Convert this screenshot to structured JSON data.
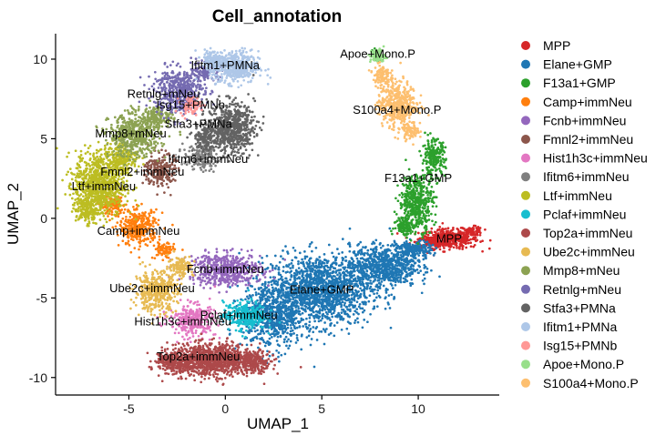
{
  "chart_data": {
    "type": "scatter",
    "title": "Cell_annotation",
    "xlabel": "UMAP_1",
    "ylabel": "UMAP_2",
    "xlim": [
      -8.8,
      14.2
    ],
    "ylim": [
      -11.1,
      11.6
    ],
    "xticks": [
      -5,
      0,
      5,
      10
    ],
    "yticks": [
      -10,
      -5,
      0,
      5,
      10
    ],
    "grid": false,
    "legend_position": "right",
    "series": [
      {
        "name": "MPP",
        "color": "#D62728",
        "label": {
          "text": "MPP",
          "x": 11.6,
          "y": -1.3
        },
        "blobs": [
          [
            11.6,
            -1.3,
            1.4,
            0.55,
            420
          ],
          [
            12.8,
            -0.8,
            0.5,
            0.25,
            80
          ],
          [
            10.7,
            -1.5,
            0.7,
            0.3,
            120
          ]
        ]
      },
      {
        "name": "Elane+GMP",
        "color": "#1F77B4",
        "label": {
          "text": "Elane+GMP",
          "x": 5.0,
          "y": -4.5
        },
        "blobs": [
          [
            5.0,
            -4.5,
            2.3,
            2.0,
            1400
          ],
          [
            8.2,
            -3.0,
            1.6,
            1.2,
            700
          ],
          [
            2.5,
            -6.0,
            1.5,
            2.0,
            700
          ],
          [
            9.8,
            -2.0,
            0.8,
            0.5,
            200
          ]
        ]
      },
      {
        "name": "F13a1+GMP",
        "color": "#2CA02C",
        "label": {
          "text": "F13a1+GMP",
          "x": 10.0,
          "y": 2.5
        },
        "blobs": [
          [
            9.9,
            1.0,
            0.8,
            1.6,
            450
          ],
          [
            10.8,
            3.8,
            0.55,
            1.0,
            220
          ],
          [
            9.3,
            -0.5,
            0.5,
            0.5,
            100
          ],
          [
            7.9,
            10.2,
            0.25,
            0.3,
            30
          ]
        ]
      },
      {
        "name": "Camp+immNeu",
        "color": "#FF7F0E",
        "label": {
          "text": "Camp+immNeu",
          "x": -4.5,
          "y": -0.8
        },
        "blobs": [
          [
            -4.5,
            -0.6,
            0.9,
            1.0,
            320
          ],
          [
            -5.8,
            0.8,
            0.6,
            0.6,
            120
          ],
          [
            -3.2,
            -2.0,
            0.5,
            0.5,
            80
          ]
        ]
      },
      {
        "name": "Fcnb+immNeu",
        "color": "#9467BD",
        "label": {
          "text": "Fcnb+immNeu",
          "x": 0.0,
          "y": -3.2
        },
        "blobs": [
          [
            0.0,
            -3.2,
            1.7,
            0.9,
            550
          ]
        ]
      },
      {
        "name": "Fmnl2+immNeu",
        "color": "#8C564B",
        "label": {
          "text": "Fmnl2+immNeu",
          "x": -4.3,
          "y": 2.9
        },
        "blobs": [
          [
            -3.4,
            3.0,
            0.7,
            1.0,
            220
          ]
        ]
      },
      {
        "name": "Hist1h3c+immNeu",
        "color": "#E377C2",
        "label": {
          "text": "Hist1h3c+immNeu",
          "x": -2.2,
          "y": -6.5
        },
        "blobs": [
          [
            -1.7,
            -6.4,
            1.1,
            0.9,
            320
          ]
        ]
      },
      {
        "name": "Ifitm6+immNeu",
        "color": "#7F7F7F",
        "label": {
          "text": "Ifitm6+immNeu",
          "x": -0.9,
          "y": 3.7
        },
        "blobs": [
          [
            -1.3,
            3.8,
            0.8,
            0.7,
            160
          ]
        ]
      },
      {
        "name": "Ltf+immNeu",
        "color": "#BCBD22",
        "label": {
          "text": "Ltf+immNeu",
          "x": -6.3,
          "y": 2.0
        },
        "blobs": [
          [
            -6.5,
            2.2,
            1.2,
            1.9,
            850
          ],
          [
            -5.3,
            3.8,
            0.7,
            0.9,
            200
          ],
          [
            -7.2,
            0.5,
            0.5,
            0.7,
            150
          ]
        ]
      },
      {
        "name": "Pclaf+immNeu",
        "color": "#17BECF",
        "label": {
          "text": "Pclaf+immNeu",
          "x": 0.7,
          "y": -6.1
        },
        "blobs": [
          [
            1.0,
            -6.1,
            1.0,
            0.8,
            300
          ]
        ]
      },
      {
        "name": "Top2a+immNeu",
        "color": "#AD494A",
        "label": {
          "text": "Top2a+immNeu",
          "x": -1.4,
          "y": -8.7
        },
        "blobs": [
          [
            -0.8,
            -8.9,
            2.0,
            0.9,
            1100
          ],
          [
            1.5,
            -9.0,
            0.8,
            0.6,
            200
          ],
          [
            -2.8,
            -9.0,
            0.7,
            0.5,
            150
          ]
        ]
      },
      {
        "name": "Ube2c+immNeu",
        "color": "#E7BA52",
        "label": {
          "text": "Ube2c+immNeu",
          "x": -3.8,
          "y": -4.4
        },
        "blobs": [
          [
            -3.6,
            -4.6,
            1.0,
            1.1,
            420
          ],
          [
            -2.3,
            -3.0,
            0.6,
            0.6,
            120
          ]
        ]
      },
      {
        "name": "Mmp8+mNeu",
        "color": "#8CA252",
        "label": {
          "text": "Mmp8+mNeu",
          "x": -4.9,
          "y": 5.3
        },
        "blobs": [
          [
            -4.7,
            5.2,
            1.2,
            1.2,
            550
          ],
          [
            -3.5,
            6.4,
            0.7,
            0.6,
            150
          ]
        ]
      },
      {
        "name": "Retnlg+mNeu",
        "color": "#756BB1",
        "label": {
          "text": "Retnlg+mNeu",
          "x": -3.2,
          "y": 7.8
        },
        "blobs": [
          [
            -2.4,
            8.0,
            1.2,
            1.3,
            480
          ],
          [
            -1.0,
            9.2,
            0.6,
            0.5,
            120
          ]
        ]
      },
      {
        "name": "Stfa3+PMNa",
        "color": "#636363",
        "label": {
          "text": "Stfa3+PMNa",
          "x": -1.4,
          "y": 5.9
        },
        "blobs": [
          [
            0.3,
            5.7,
            1.1,
            1.4,
            650
          ],
          [
            -1.0,
            5.0,
            0.6,
            0.8,
            150
          ]
        ]
      },
      {
        "name": "Ifitm1+PMNa",
        "color": "#AEC7E8",
        "label": {
          "text": "Ifitm1+PMNa",
          "x": 0.0,
          "y": 9.6
        },
        "blobs": [
          [
            0.5,
            9.5,
            1.1,
            0.9,
            500
          ],
          [
            -0.6,
            10.0,
            0.6,
            0.5,
            120
          ]
        ]
      },
      {
        "name": "Isg15+PMNb",
        "color": "#FF9896",
        "label": {
          "text": "Isg15+PMNb",
          "x": -1.8,
          "y": 7.1
        },
        "blobs": [
          [
            -1.8,
            7.1,
            0.5,
            0.5,
            70
          ]
        ]
      },
      {
        "name": "Apoe+Mono.P",
        "color": "#98DF8A",
        "label": {
          "text": "Apoe+Mono.P",
          "x": 7.9,
          "y": 10.3
        },
        "blobs": [
          [
            7.9,
            10.2,
            0.35,
            0.4,
            90
          ]
        ]
      },
      {
        "name": "S100a4+Mono.P",
        "color": "#FDBF6F",
        "label": {
          "text": "S100a4+Mono.P",
          "x": 8.9,
          "y": 6.8
        },
        "blobs": [
          [
            8.9,
            7.2,
            0.9,
            1.3,
            450
          ],
          [
            8.1,
            9.0,
            0.4,
            0.6,
            100
          ],
          [
            9.6,
            5.5,
            0.4,
            0.5,
            80
          ]
        ]
      }
    ]
  }
}
